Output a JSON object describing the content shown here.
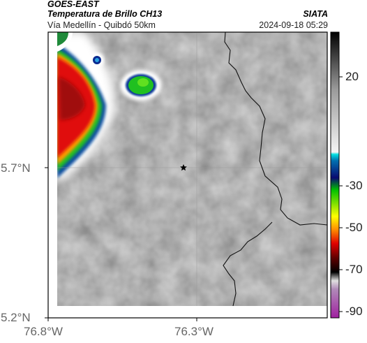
{
  "header": {
    "satellite": "GOES-EAST",
    "product": "Temperatura de Brillo CH13",
    "route": "Vía Medellín - Quibdó 50km",
    "organization": "SIATA",
    "timestamp": "2024-09-18 05:29"
  },
  "map": {
    "lon_range": [
      -76.8,
      -76.0
    ],
    "lat_range": [
      5.2,
      6.25
    ],
    "lat_ticks": [
      {
        "value": 5.7,
        "label": "5.7°N"
      },
      {
        "value": 5.2,
        "label": "5.2°N"
      }
    ],
    "lon_ticks": [
      {
        "value": -76.8,
        "label": "76.8°W"
      },
      {
        "value": -76.3,
        "label": "76.3°W"
      }
    ],
    "marker": {
      "name": "star-marker",
      "lon": -76.32,
      "lat": 5.7
    },
    "gridlines": true
  },
  "colorbar": {
    "ticks": [
      {
        "value": 20,
        "label": "20"
      },
      {
        "value": -30,
        "label": "-30"
      },
      {
        "value": -50,
        "label": "-50"
      },
      {
        "value": -70,
        "label": "-70"
      },
      {
        "value": -90,
        "label": "-90"
      }
    ]
  }
}
